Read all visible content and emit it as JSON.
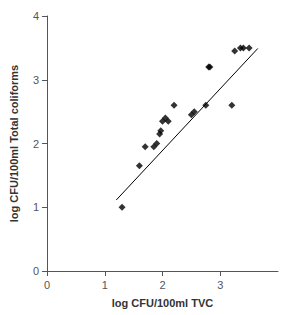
{
  "chart_data": {
    "type": "scatter",
    "xlabel": "log CFU/100ml TVC",
    "ylabel": "log CFU/100ml Total coliforms",
    "xlim": [
      0,
      4
    ],
    "ylim": [
      0,
      4
    ],
    "xticks": [
      0,
      1,
      2,
      3
    ],
    "yticks": [
      0,
      1,
      2,
      3,
      4
    ],
    "grid": false,
    "series": [
      {
        "type": "scatter",
        "marker": "diamond",
        "color": "#000000",
        "x": [
          1.3,
          1.6,
          1.7,
          1.85,
          1.9,
          1.95,
          1.97,
          2.0,
          2.05,
          2.1,
          2.2,
          2.5,
          2.55,
          2.75,
          2.8,
          2.82,
          3.2,
          3.25,
          3.35,
          3.4,
          3.5
        ],
        "values": [
          1.0,
          1.65,
          1.95,
          1.95,
          2.0,
          2.15,
          2.2,
          2.35,
          2.4,
          2.35,
          2.6,
          2.45,
          2.5,
          2.6,
          3.2,
          3.2,
          2.6,
          3.45,
          3.5,
          3.5,
          3.5
        ]
      },
      {
        "type": "line",
        "color": "#000000",
        "x": [
          1.2,
          3.65
        ],
        "values": [
          1.114,
          3.4905
        ]
      }
    ]
  }
}
